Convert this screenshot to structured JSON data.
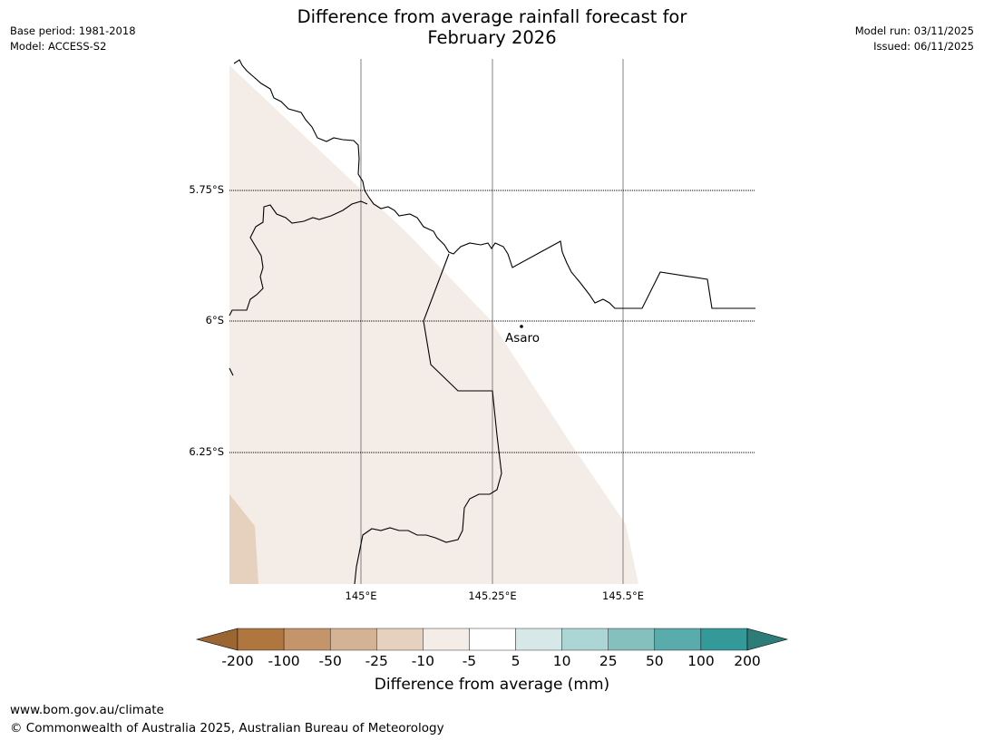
{
  "header": {
    "title_line1": "Difference from average rainfall forecast for",
    "title_line2": "February 2026",
    "base_period": "Base period: 1981-2018",
    "model": "Model: ACCESS-S2",
    "model_run": "Model run: 03/11/2025",
    "issued": "Issued: 06/11/2025"
  },
  "map": {
    "latitude_labels": [
      "5.75°S",
      "6°S",
      "6.25°S"
    ],
    "longitude_labels": [
      "145°E",
      "145.25°E",
      "145.5°E"
    ],
    "place_label": "Asaro",
    "colors": {
      "land_fill_light": "#f4ede7",
      "land_fill_medium": "#e6d1bf",
      "coastline": "#000000",
      "gridline": "#808080"
    }
  },
  "colorbar": {
    "title": "Difference from average (mm)",
    "tick_labels": [
      "-200",
      "-100",
      "-50",
      "-25",
      "-10",
      "-5",
      "5",
      "10",
      "25",
      "50",
      "100",
      "200"
    ],
    "colors": [
      "#9c6633",
      "#b07640",
      "#c4946a",
      "#d4b294",
      "#e6d1bf",
      "#f4ede7",
      "#ffffff",
      "#d6e8e8",
      "#acd5d5",
      "#84c0bd",
      "#5aabab",
      "#339999",
      "#2e7c78"
    ]
  },
  "footer": {
    "url": "www.bom.gov.au/climate",
    "copyright": "© Commonwealth of Australia 2025, Australian Bureau of Meteorology"
  }
}
